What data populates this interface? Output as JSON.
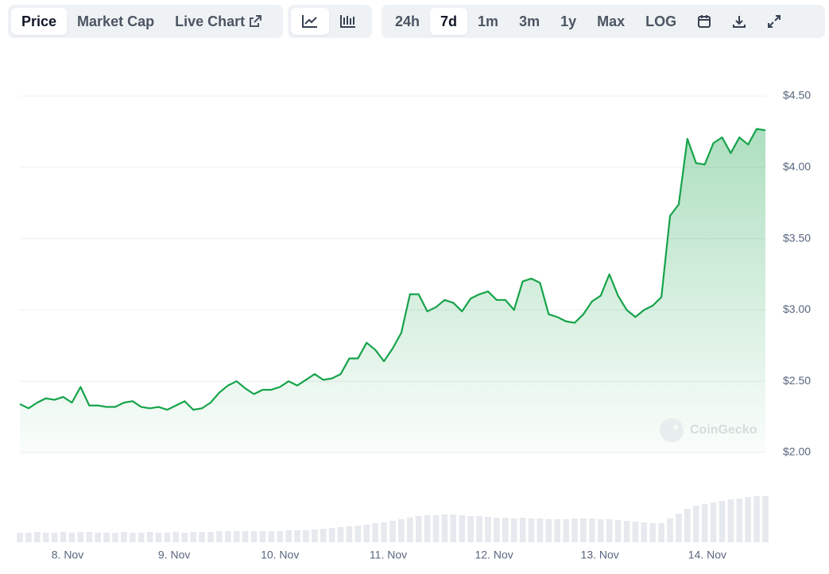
{
  "tabs": [
    "Price",
    "Market Cap",
    "Live Chart"
  ],
  "ranges": [
    "24h",
    "7d",
    "1m",
    "3m",
    "1y",
    "Max",
    "LOG"
  ],
  "chart_data": {
    "type": "line",
    "values": [
      2.34,
      2.31,
      2.35,
      2.38,
      2.37,
      2.39,
      2.35,
      2.46,
      2.33,
      2.33,
      2.32,
      2.32,
      2.35,
      2.36,
      2.32,
      2.31,
      2.32,
      2.3,
      2.33,
      2.36,
      2.3,
      2.31,
      2.35,
      2.42,
      2.47,
      2.5,
      2.45,
      2.41,
      2.44,
      2.44,
      2.46,
      2.5,
      2.47,
      2.51,
      2.55,
      2.51,
      2.52,
      2.55,
      2.66,
      2.66,
      2.77,
      2.72,
      2.64,
      2.73,
      2.84,
      3.11,
      3.11,
      2.99,
      3.02,
      3.07,
      3.05,
      2.99,
      3.08,
      3.11,
      3.13,
      3.07,
      3.07,
      3.0,
      3.2,
      3.22,
      3.19,
      2.97,
      2.95,
      2.92,
      2.91,
      2.97,
      3.06,
      3.1,
      3.25,
      3.1,
      3.0,
      2.95,
      3.0,
      3.03,
      3.09,
      3.66,
      3.74,
      4.2,
      4.03,
      4.02,
      4.17,
      4.21,
      4.1,
      4.21,
      4.16,
      4.27,
      4.26
    ],
    "volumes": [
      12,
      12,
      13,
      12,
      12,
      13,
      12,
      13,
      13,
      12,
      12,
      12,
      13,
      12,
      12,
      13,
      12,
      12,
      13,
      12,
      13,
      13,
      13,
      14,
      14,
      14,
      14,
      14,
      14,
      14,
      14,
      15,
      15,
      15,
      16,
      17,
      18,
      19,
      20,
      21,
      22,
      24,
      25,
      27,
      29,
      31,
      33,
      34,
      34,
      35,
      35,
      34,
      33,
      33,
      32,
      31,
      31,
      30,
      31,
      30,
      30,
      29,
      29,
      29,
      30,
      30,
      30,
      29,
      29,
      28,
      27,
      26,
      25,
      24,
      24,
      30,
      36,
      42,
      46,
      48,
      50,
      52,
      54,
      55,
      57,
      58,
      58
    ],
    "color": "#16a34a",
    "xlim": [
      0,
      86
    ],
    "xticks": [
      {
        "value": 5.5,
        "label": "8. Nov"
      },
      {
        "value": 17.8,
        "label": "9. Nov"
      },
      {
        "value": 30.0,
        "label": "10. Nov"
      },
      {
        "value": 42.5,
        "label": "11. Nov"
      },
      {
        "value": 54.7,
        "label": "12. Nov"
      },
      {
        "value": 66.9,
        "label": "13. Nov"
      },
      {
        "value": 79.3,
        "label": "14. Nov"
      }
    ],
    "ylim": [
      2,
      4.5
    ],
    "yticks": [
      {
        "value": 2,
        "label": "$2.00"
      },
      {
        "value": 2.5,
        "label": "$2.50"
      },
      {
        "value": 3,
        "label": "$3.00"
      },
      {
        "value": 3.5,
        "label": "$3.50"
      },
      {
        "value": 4,
        "label": "$4.00"
      },
      {
        "value": 4.5,
        "label": "$4.50"
      }
    ],
    "grid": true,
    "watermark": "CoinGecko"
  }
}
